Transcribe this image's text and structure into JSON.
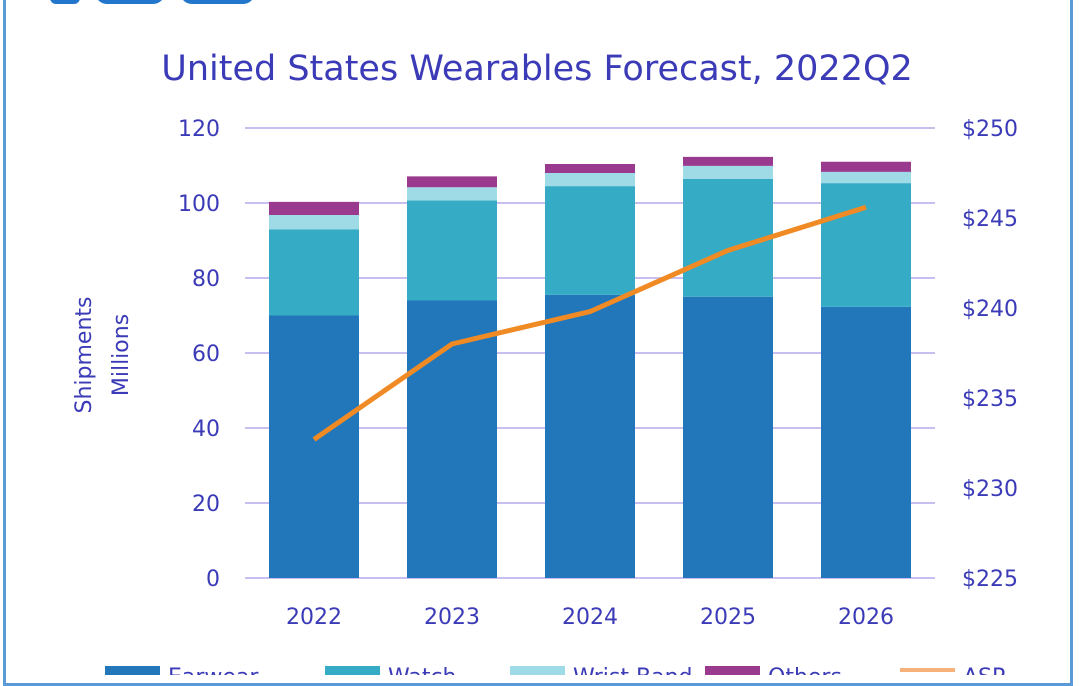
{
  "chart_data": {
    "type": "bar",
    "stacked": true,
    "title": "United States Wearables Forecast, 2022Q2",
    "ylabel": [
      "Shipments",
      "Millions"
    ],
    "y2label": "",
    "categories": [
      "2022",
      "2023",
      "2024",
      "2025",
      "2026"
    ],
    "ylim": [
      0,
      120
    ],
    "yticks": [
      "0",
      "20",
      "40",
      "60",
      "80",
      "100",
      "120"
    ],
    "y2lim": [
      225,
      250
    ],
    "y2ticks": [
      "$225",
      "$230",
      "$235",
      "$240",
      "$245",
      "$250"
    ],
    "grid": true,
    "legend_placement": "bottom",
    "series": [
      {
        "name": "Earwear",
        "type": "bar",
        "color": "#2277bb",
        "values": [
          70,
          74,
          75.5,
          75,
          72.3
        ]
      },
      {
        "name": "Watch",
        "type": "bar",
        "color": "#35abc6",
        "values": [
          23,
          26.7,
          29,
          31.4,
          33
        ]
      },
      {
        "name": "Wrist Band",
        "type": "bar",
        "color": "#9fdbe6",
        "values": [
          3.8,
          3.5,
          3.5,
          3.5,
          3
        ]
      },
      {
        "name": "Others",
        "type": "bar",
        "color": "#9a3a8e",
        "values": [
          3.5,
          2.9,
          2.4,
          2.4,
          2.7
        ]
      },
      {
        "name": "ASP",
        "type": "line",
        "axis": "right",
        "color": "#f08a24",
        "values": [
          232.7,
          238,
          239.8,
          243.2,
          245.6
        ]
      }
    ]
  },
  "colors": {
    "text": "#3b3bb8",
    "grid": "#c8bff0",
    "frame": "#5b9bd5",
    "logo": "#2277cc"
  }
}
